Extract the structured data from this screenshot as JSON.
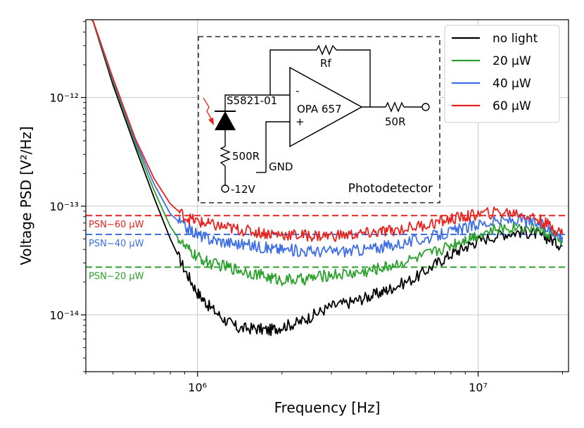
{
  "chart_data": {
    "type": "line",
    "xlabel": "Frequency [Hz]",
    "ylabel": "Voltage PSD [V²/Hz]",
    "xscale": "log",
    "yscale": "log",
    "xlim": [
      400000,
      21000000
    ],
    "ylim": [
      3e-15,
      5.2e-12
    ],
    "grid": true,
    "legend_position": "top-right",
    "x_tick_labels": [
      "10⁶",
      "10⁷"
    ],
    "x_ticks": [
      1000000,
      10000000
    ],
    "y_tick_labels": [
      "10⁻¹²",
      "10⁻¹³",
      "10⁻¹⁴"
    ],
    "y_ticks": [
      1e-12,
      1e-13,
      1e-14
    ],
    "series": [
      {
        "name": "no light",
        "color": "#000000",
        "points": [
          [
            420000,
            5.5e-12
          ],
          [
            500000,
            1.3e-12
          ],
          [
            600000,
            3.5e-13
          ],
          [
            700000,
            1.2e-13
          ],
          [
            800000,
            5e-14
          ],
          [
            900000,
            2.6e-14
          ],
          [
            1000000,
            1.6e-14
          ],
          [
            1100000,
            1.2e-14
          ],
          [
            1250000,
            9e-15
          ],
          [
            1400000,
            7.5e-15
          ],
          [
            1600000,
            7.5e-15
          ],
          [
            1800000,
            7.2e-15
          ],
          [
            2000000,
            7.8e-15
          ],
          [
            2300000,
            8.5e-15
          ],
          [
            2600000,
            1e-14
          ],
          [
            3000000,
            1.2e-14
          ],
          [
            3500000,
            1.3e-14
          ],
          [
            4000000,
            1.45e-14
          ],
          [
            4500000,
            1.6e-14
          ],
          [
            5000000,
            1.8e-14
          ],
          [
            6000000,
            2.2e-14
          ],
          [
            7000000,
            2.9e-14
          ],
          [
            8000000,
            3.6e-14
          ],
          [
            9000000,
            4.2e-14
          ],
          [
            10000000,
            4.8e-14
          ],
          [
            12000000,
            5.5e-14
          ],
          [
            14000000,
            5.8e-14
          ],
          [
            16000000,
            5.6e-14
          ],
          [
            18000000,
            5e-14
          ],
          [
            20000000,
            4.3e-14
          ]
        ]
      },
      {
        "name": "20 µW",
        "color": "#2ca02c",
        "points": [
          [
            420000,
            5.5e-12
          ],
          [
            500000,
            1.4e-12
          ],
          [
            600000,
            3.8e-13
          ],
          [
            700000,
            1.4e-13
          ],
          [
            800000,
            6.5e-14
          ],
          [
            900000,
            4.2e-14
          ],
          [
            1000000,
            3.4e-14
          ],
          [
            1100000,
            3e-14
          ],
          [
            1250000,
            2.8e-14
          ],
          [
            1400000,
            2.6e-14
          ],
          [
            1600000,
            2.4e-14
          ],
          [
            1800000,
            2.2e-14
          ],
          [
            2000000,
            2.1e-14
          ],
          [
            2300000,
            2.1e-14
          ],
          [
            2600000,
            2.2e-14
          ],
          [
            3000000,
            2.35e-14
          ],
          [
            3500000,
            2.4e-14
          ],
          [
            4000000,
            2.5e-14
          ],
          [
            4500000,
            2.7e-14
          ],
          [
            5000000,
            2.9e-14
          ],
          [
            6000000,
            3.3e-14
          ],
          [
            7000000,
            3.8e-14
          ],
          [
            8000000,
            4.4e-14
          ],
          [
            9000000,
            5e-14
          ],
          [
            10000000,
            5.5e-14
          ],
          [
            12000000,
            6.2e-14
          ],
          [
            14000000,
            6.5e-14
          ],
          [
            16000000,
            6.2e-14
          ],
          [
            18000000,
            5.6e-14
          ],
          [
            20000000,
            4.8e-14
          ]
        ]
      },
      {
        "name": "40 µW",
        "color": "#3f6fe6",
        "points": [
          [
            420000,
            5.5e-12
          ],
          [
            500000,
            1.45e-12
          ],
          [
            600000,
            4e-13
          ],
          [
            700000,
            1.6e-13
          ],
          [
            800000,
            8.5e-14
          ],
          [
            900000,
            6.5e-14
          ],
          [
            1000000,
            5.5e-14
          ],
          [
            1100000,
            5e-14
          ],
          [
            1250000,
            4.7e-14
          ],
          [
            1400000,
            4.5e-14
          ],
          [
            1600000,
            4.3e-14
          ],
          [
            1800000,
            4.1e-14
          ],
          [
            2000000,
            4e-14
          ],
          [
            2300000,
            3.9e-14
          ],
          [
            2600000,
            3.85e-14
          ],
          [
            3000000,
            3.85e-14
          ],
          [
            3500000,
            3.9e-14
          ],
          [
            4000000,
            4e-14
          ],
          [
            4500000,
            4.2e-14
          ],
          [
            5000000,
            4.4e-14
          ],
          [
            6000000,
            4.8e-14
          ],
          [
            7000000,
            5.3e-14
          ],
          [
            8000000,
            5.8e-14
          ],
          [
            9000000,
            6.3e-14
          ],
          [
            10000000,
            6.8e-14
          ],
          [
            12000000,
            7.3e-14
          ],
          [
            14000000,
            7.5e-14
          ],
          [
            16000000,
            7e-14
          ],
          [
            18000000,
            6.2e-14
          ],
          [
            20000000,
            5.2e-14
          ]
        ]
      },
      {
        "name": "60 µW",
        "color": "#e8231e",
        "points": [
          [
            420000,
            5.5e-12
          ],
          [
            500000,
            1.5e-12
          ],
          [
            600000,
            4.2e-13
          ],
          [
            700000,
            1.8e-13
          ],
          [
            800000,
            1.05e-13
          ],
          [
            900000,
            8e-14
          ],
          [
            1000000,
            7.2e-14
          ],
          [
            1100000,
            6.8e-14
          ],
          [
            1250000,
            6.4e-14
          ],
          [
            1400000,
            6.1e-14
          ],
          [
            1600000,
            5.8e-14
          ],
          [
            1800000,
            5.6e-14
          ],
          [
            2000000,
            5.5e-14
          ],
          [
            2300000,
            5.4e-14
          ],
          [
            2600000,
            5.35e-14
          ],
          [
            3000000,
            5.35e-14
          ],
          [
            3500000,
            5.45e-14
          ],
          [
            4000000,
            5.6e-14
          ],
          [
            4500000,
            5.8e-14
          ],
          [
            5000000,
            6e-14
          ],
          [
            6000000,
            6.5e-14
          ],
          [
            7000000,
            7e-14
          ],
          [
            8000000,
            7.6e-14
          ],
          [
            9000000,
            8e-14
          ],
          [
            10000000,
            8.4e-14
          ],
          [
            12000000,
            8.8e-14
          ],
          [
            14000000,
            8.6e-14
          ],
          [
            16000000,
            7.8e-14
          ],
          [
            18000000,
            6.6e-14
          ],
          [
            20000000,
            5.6e-14
          ]
        ]
      }
    ],
    "reference_lines": [
      {
        "label": "PSN~60 μW",
        "value": 8.2e-14,
        "color": "#e8231e"
      },
      {
        "label": "PSN~40 μW",
        "value": 5.5e-14,
        "color": "#3f6fe6"
      },
      {
        "label": "PSN~20 μW",
        "value": 2.75e-14,
        "color": "#2ca02c"
      }
    ],
    "legend": [
      {
        "label": "no light",
        "color": "#000000"
      },
      {
        "label": "20 μW",
        "color": "#2ca02c"
      },
      {
        "label": "40 μW",
        "color": "#3f6fe6"
      },
      {
        "label": "60 μW",
        "color": "#e8231e"
      }
    ]
  },
  "inset": {
    "title": "Photodetector",
    "photodiode": "S5821-01",
    "opamp": "OPA 657",
    "feedback_resistor": "Rf",
    "output_resistor": "50R",
    "bias_resistor": "500R",
    "supply": "-12V",
    "ground": "GND",
    "minus_sign": "-",
    "plus_sign": "+"
  }
}
